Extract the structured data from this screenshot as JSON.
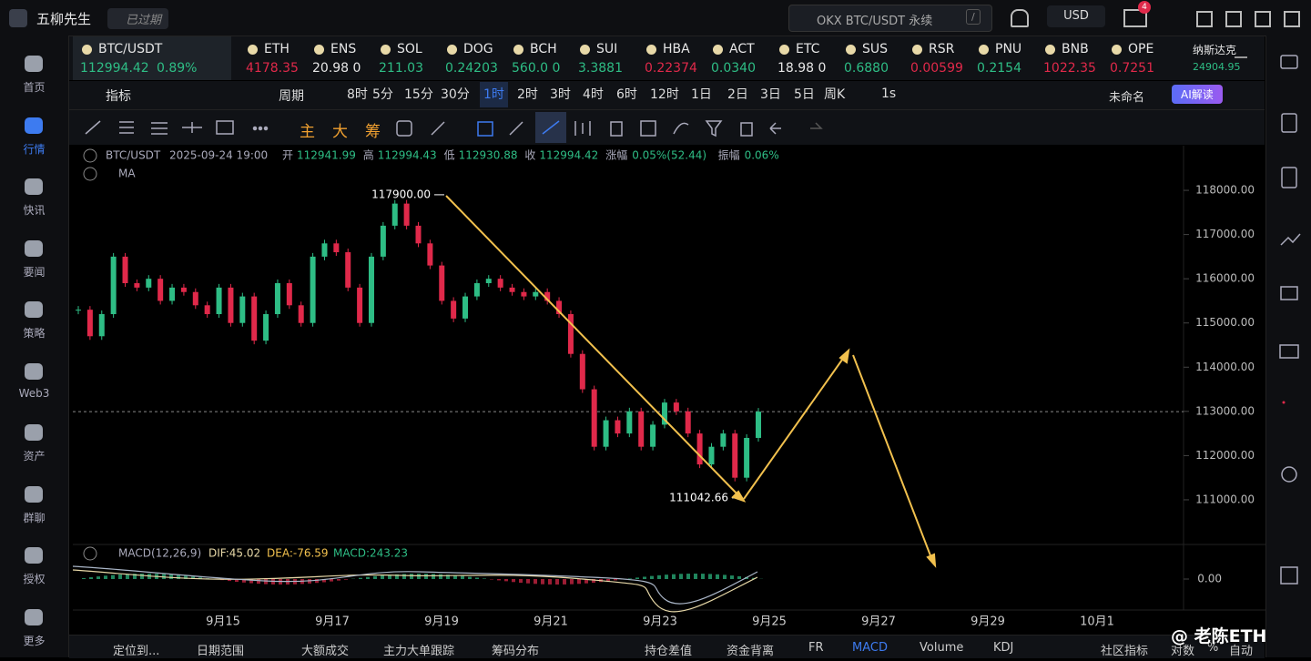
{
  "header": {
    "app_name": "五柳先生",
    "status": "已过期",
    "search": "OKX BTC/USDT 永续",
    "search_key": "/",
    "currency": "USD",
    "mail_badge": "4"
  },
  "sidebar": [
    "首页",
    "行情",
    "快讯",
    "要闻",
    "策略",
    "Web3",
    "资产",
    "群聊",
    "授权",
    "更多"
  ],
  "tickers": [
    {
      "symbol": "BTC/USDT",
      "price": "112994.42",
      "change": "0.89%",
      "trend": "up"
    },
    {
      "symbol": "ETH",
      "price": "4178.35",
      "trend": "down"
    },
    {
      "symbol": "ENS",
      "price": "20.98 0",
      "trend": "flat"
    },
    {
      "symbol": "SOL",
      "price": "211.03",
      "trend": "up"
    },
    {
      "symbol": "DOG",
      "price": "0.24203",
      "trend": "up"
    },
    {
      "symbol": "BCH",
      "price": "560.0 0",
      "trend": "up"
    },
    {
      "symbol": "SUI",
      "price": "3.3881",
      "trend": "up"
    },
    {
      "symbol": "HBA",
      "price": "0.22374",
      "trend": "down"
    },
    {
      "symbol": "ACT",
      "price": "0.0340",
      "trend": "up"
    },
    {
      "symbol": "ETC",
      "price": "18.98 0",
      "trend": "flat"
    },
    {
      "symbol": "SUS",
      "price": "0.6880",
      "trend": "up"
    },
    {
      "symbol": "RSR",
      "price": "0.00599",
      "trend": "down"
    },
    {
      "symbol": "PNU",
      "price": "0.2154",
      "trend": "up"
    },
    {
      "symbol": "BNB",
      "price": "1022.35",
      "trend": "down"
    },
    {
      "symbol": "OPE",
      "price": "0.7251",
      "trend": "down"
    },
    {
      "symbol": "纳斯达克",
      "price": "24904.95",
      "trend": "up"
    }
  ],
  "toolbar": {
    "indicator": "指标",
    "period": "周期",
    "intervals": [
      "8时",
      "5分",
      "15分",
      "30分",
      "1时",
      "2时",
      "3时",
      "4时",
      "6时",
      "12时",
      "1日",
      "2日",
      "3日",
      "5日",
      "周K"
    ],
    "active_interval": "1时",
    "seconds": "1s",
    "layout_name": "未命名",
    "ai": "AI解读"
  },
  "draw_toolbar": [
    "主",
    "大",
    "筹"
  ],
  "chart_data": {
    "type": "candlestick",
    "info": {
      "pair": "BTC/USDT",
      "datetime": "2025-09-24 19:00",
      "fields": [
        {
          "label": "开",
          "value": "112941.99"
        },
        {
          "label": "高",
          "value": "112994.43"
        },
        {
          "label": "低",
          "value": "112930.88"
        },
        {
          "label": "收",
          "value": "112994.42"
        },
        {
          "label": "涨幅",
          "value": "0.05%(52.44)"
        },
        {
          "label": "振幅",
          "value": "0.06%"
        }
      ],
      "ma": "MA"
    },
    "closes": [
      115300,
      114700,
      115200,
      116500,
      115900,
      115800,
      116000,
      115500,
      115800,
      115700,
      115400,
      115200,
      115800,
      115000,
      115600,
      114600,
      115200,
      115900,
      115400,
      115000,
      116500,
      116800,
      116600,
      115800,
      115000,
      116500,
      117200,
      117700,
      117200,
      116800,
      116300,
      115500,
      115100,
      115600,
      115900,
      116000,
      115800,
      115700,
      115600,
      115700,
      115500,
      115200,
      114300,
      113500,
      112200,
      112800,
      112500,
      113000,
      112200,
      112700,
      113200,
      113000,
      112500,
      111800,
      112200,
      112500,
      111500,
      112400,
      112994.42
    ],
    "up_color": "#2ebd85",
    "down_color": "#e0294a",
    "ylim": [
      109990,
      119010
    ],
    "yticks": [
      {
        "value": 111000,
        "label": "111000.00"
      },
      {
        "value": 112000,
        "label": "112000.00"
      },
      {
        "value": 113000,
        "label": "113000.00"
      },
      {
        "value": 114000,
        "label": "114000.00"
      },
      {
        "value": 115000,
        "label": "115000.00"
      },
      {
        "value": 116000,
        "label": "116000.00"
      },
      {
        "value": 117000,
        "label": "117000.00"
      },
      {
        "value": 118000,
        "label": "118000.00"
      }
    ],
    "current_price": 112994.42,
    "annotations": [
      {
        "text": "117900.00",
        "value": 117900
      },
      {
        "text": "111042.66",
        "value": 111042.66
      }
    ],
    "x_labels": [
      "9月15",
      "9月17",
      "9月19",
      "9月21",
      "9月23",
      "9月25",
      "9月27",
      "9月29",
      "10月1"
    ],
    "macd": {
      "label": "MACD(12,26,9)",
      "dif": "DIF:45.02",
      "dea": "DEA:-76.59",
      "macd": "MACD:243.23",
      "ytick": {
        "value": 0,
        "label": "0.00"
      }
    }
  },
  "bottom_tabs": [
    "定位到...",
    "日期范围",
    "大额成交",
    "主力大单跟踪",
    "筹码分布",
    "持仓差值",
    "资金背离",
    "FR",
    "MACD",
    "Volume",
    "KDJ",
    "社区指标",
    "对数",
    "%",
    "自动"
  ],
  "active_tab": "MACD",
  "watermark": "@ 老陈ETH"
}
